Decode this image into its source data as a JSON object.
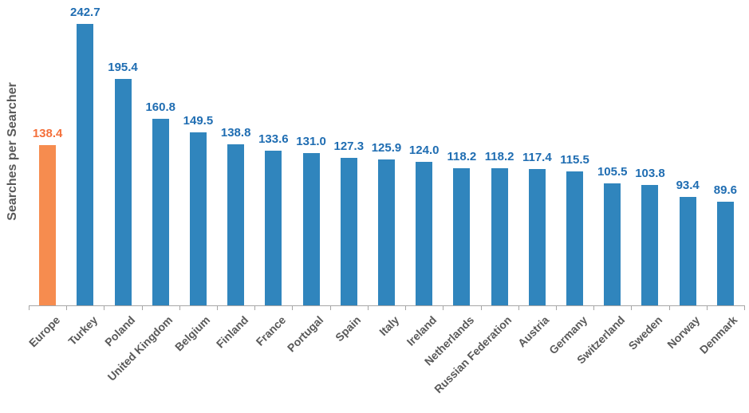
{
  "chart_data": {
    "type": "bar",
    "title": "",
    "xlabel": "",
    "ylabel": "Searches per Searcher",
    "categories": [
      "Europe",
      "Turkey",
      "Poland",
      "United Kingdom",
      "Belgium",
      "Finland",
      "France",
      "Portugal",
      "Spain",
      "Italy",
      "Ireland",
      "Netherlands",
      "Russian Federation",
      "Austria",
      "Germany",
      "Switzerland",
      "Sweden",
      "Norway",
      "Denmark"
    ],
    "values": [
      138.4,
      242.7,
      195.4,
      160.8,
      149.5,
      138.8,
      133.6,
      131.0,
      127.3,
      125.9,
      124.0,
      118.2,
      118.2,
      117.4,
      115.5,
      105.5,
      103.8,
      93.4,
      89.6
    ],
    "highlighted_category": "Europe",
    "highlight_index": 0,
    "value_labels_shown": true,
    "grid": false,
    "legend": "none",
    "ylim": [
      0,
      260
    ],
    "colors": {
      "bar": "#3085BD",
      "bar_highlight": "#F68C4F",
      "value_label": "#1F6DB2",
      "value_label_highlight": "#F4703B",
      "axis_line": "#A6A6A6",
      "category_label": "#595959",
      "axis_title": "#595959"
    }
  }
}
